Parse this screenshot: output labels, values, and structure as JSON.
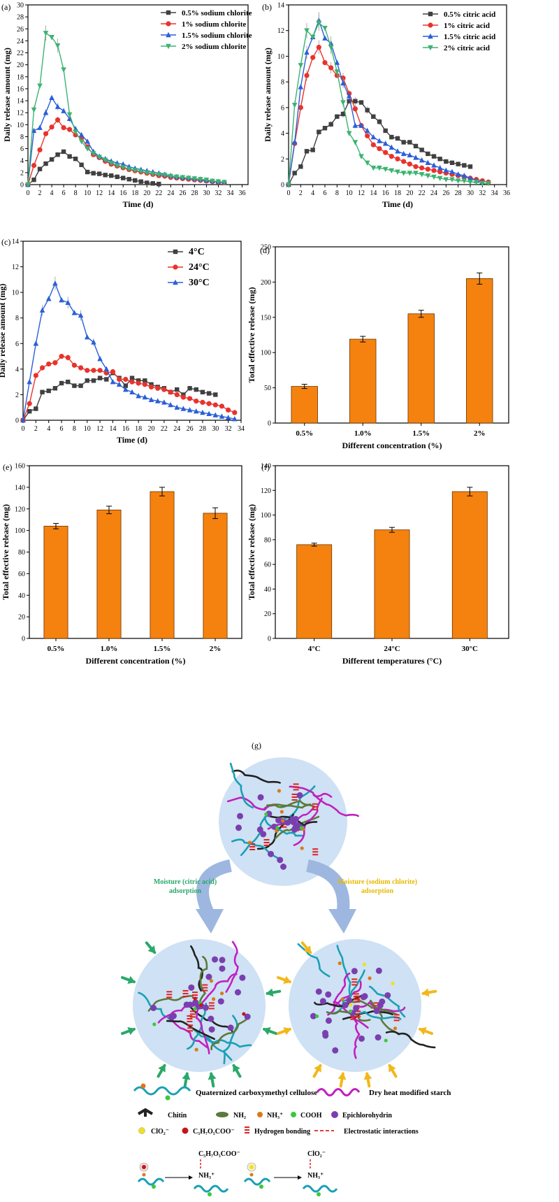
{
  "colors": {
    "black_series": "#404040",
    "red_series": "#e8332c",
    "blue_series": "#2a5fd8",
    "green_series": "#3cb371",
    "bar": "#f5820f",
    "bar_edge": "#6b3300",
    "arrow": "#9db7e0",
    "bubble": "#cfe1f4",
    "label_green": "#2aa86a",
    "label_yellow": "#e8b800"
  },
  "chart_data": [
    {
      "panel": "(a)",
      "type": "line",
      "xlabel": "Time (d)",
      "ylabel": "Daily release amount (mg)",
      "xlim": [
        0,
        37
      ],
      "ylim": [
        0,
        30
      ],
      "xticks": [
        0,
        2,
        4,
        6,
        8,
        10,
        12,
        14,
        16,
        18,
        20,
        22,
        24,
        26,
        28,
        30,
        32,
        34,
        36
      ],
      "yticks": [
        0,
        2,
        4,
        6,
        8,
        10,
        12,
        14,
        16,
        18,
        20,
        22,
        24,
        26,
        28,
        30
      ],
      "legend_position": "top-right",
      "series": [
        {
          "name": "0.5% sodium chlorite",
          "marker": "square",
          "color": "#404040",
          "x": [
            0,
            1,
            2,
            3,
            4,
            5,
            6,
            7,
            8,
            9,
            10,
            11,
            12,
            13,
            14,
            15,
            16,
            17,
            18,
            19,
            20,
            21,
            22
          ],
          "y": [
            0,
            0.8,
            2.6,
            3.5,
            4.2,
            5.0,
            5.5,
            4.7,
            4.3,
            3.3,
            2.1,
            1.9,
            1.8,
            1.6,
            1.5,
            1.3,
            1.1,
            0.9,
            0.7,
            0.5,
            0.3,
            0.2,
            0.1
          ]
        },
        {
          "name": "1% sodium chlorite",
          "marker": "circle",
          "color": "#e8332c",
          "x": [
            0,
            1,
            2,
            3,
            4,
            5,
            6,
            7,
            8,
            9,
            10,
            11,
            12,
            13,
            14,
            15,
            16,
            17,
            18,
            19,
            20,
            21,
            22,
            23,
            24,
            25,
            26,
            27,
            28,
            29,
            30,
            31,
            32,
            33
          ],
          "y": [
            0,
            3.2,
            5.8,
            8.5,
            9.6,
            10.8,
            9.5,
            9.2,
            8.3,
            7.8,
            6.3,
            5.0,
            4.5,
            3.9,
            3.4,
            3.1,
            2.8,
            2.5,
            2.3,
            2.1,
            1.9,
            1.7,
            1.5,
            1.4,
            1.2,
            1.1,
            1.0,
            0.9,
            0.8,
            0.7,
            0.6,
            0.5,
            0.4,
            0.3
          ]
        },
        {
          "name": "1.5% sodium chlorite",
          "marker": "triangle",
          "color": "#2a5fd8",
          "x": [
            0,
            1,
            2,
            3,
            4,
            5,
            6,
            7,
            8,
            9,
            10,
            11,
            12,
            13,
            14,
            15,
            16,
            17,
            18,
            19,
            20,
            21,
            22,
            23,
            24,
            25,
            26,
            27,
            28,
            29,
            30,
            31,
            32,
            33
          ],
          "y": [
            0,
            9.0,
            9.5,
            12.0,
            14.5,
            13.0,
            12.3,
            11.0,
            9.3,
            8.3,
            7.2,
            5.5,
            4.7,
            4.3,
            3.9,
            3.6,
            3.4,
            3.0,
            2.7,
            2.5,
            2.3,
            2.1,
            1.9,
            1.7,
            1.5,
            1.3,
            1.2,
            1.1,
            1.0,
            0.9,
            0.7,
            0.6,
            0.5,
            0.4
          ]
        },
        {
          "name": "2% sodium chlorite",
          "marker": "triangle-down",
          "color": "#3cb371",
          "x": [
            0,
            1,
            2,
            3,
            4,
            5,
            6,
            7,
            8,
            9,
            10,
            11,
            12,
            13,
            14,
            15,
            16,
            17,
            18,
            19,
            20,
            21,
            22,
            23,
            24,
            25,
            26,
            27,
            28,
            29,
            30,
            31,
            32,
            33
          ],
          "y": [
            0,
            12.5,
            16.5,
            25.3,
            24.6,
            23.2,
            19.2,
            11.7,
            8.8,
            7.2,
            6.0,
            5.2,
            4.6,
            4.1,
            3.6,
            3.2,
            2.9,
            2.6,
            2.4,
            2.2,
            2.0,
            1.8,
            1.7,
            1.6,
            1.4,
            1.3,
            1.2,
            1.1,
            1.0,
            0.9,
            0.8,
            0.6,
            0.5,
            0.4
          ]
        }
      ]
    },
    {
      "panel": "(b)",
      "type": "line",
      "xlabel": "Time (d)",
      "ylabel": "Daily release amount (mg)",
      "xlim": [
        0,
        36
      ],
      "ylim": [
        0,
        14
      ],
      "xticks": [
        0,
        2,
        4,
        6,
        8,
        10,
        12,
        14,
        16,
        18,
        20,
        22,
        24,
        26,
        28,
        30,
        32,
        34,
        36
      ],
      "yticks": [
        0,
        2,
        4,
        6,
        8,
        10,
        12,
        14
      ],
      "legend_position": "top-right",
      "series": [
        {
          "name": "0.5% citric acid",
          "marker": "square",
          "color": "#404040",
          "x": [
            0,
            1,
            2,
            3,
            4,
            5,
            6,
            7,
            8,
            9,
            10,
            11,
            12,
            13,
            14,
            15,
            16,
            17,
            18,
            19,
            20,
            21,
            22,
            23,
            24,
            25,
            26,
            27,
            28,
            29,
            30
          ],
          "y": [
            0,
            0.9,
            1.4,
            2.6,
            2.7,
            4.1,
            4.4,
            4.7,
            5.3,
            5.5,
            6.5,
            6.5,
            6.4,
            5.8,
            5.3,
            4.9,
            4.2,
            3.7,
            3.6,
            3.3,
            3.3,
            3.0,
            2.7,
            2.4,
            2.2,
            2.0,
            1.8,
            1.7,
            1.6,
            1.5,
            1.4
          ]
        },
        {
          "name": "1% citric acid",
          "marker": "circle",
          "color": "#e8332c",
          "x": [
            0,
            1,
            2,
            3,
            4,
            5,
            6,
            7,
            8,
            9,
            10,
            11,
            12,
            13,
            14,
            15,
            16,
            17,
            18,
            19,
            20,
            21,
            22,
            23,
            24,
            25,
            26,
            27,
            28,
            29,
            30,
            31,
            32,
            33
          ],
          "y": [
            0,
            3.2,
            6.0,
            8.5,
            9.9,
            10.7,
            9.5,
            9.1,
            8.5,
            8.3,
            7.1,
            5.9,
            4.6,
            3.8,
            3.1,
            2.8,
            2.5,
            2.2,
            2.0,
            1.8,
            1.6,
            1.4,
            1.3,
            1.2,
            1.1,
            1.0,
            0.9,
            0.8,
            0.7,
            0.6,
            0.5,
            0.4,
            0.3,
            0.2
          ]
        },
        {
          "name": "1.5% citric acid",
          "marker": "triangle",
          "color": "#2a5fd8",
          "x": [
            0,
            1,
            2,
            3,
            4,
            5,
            6,
            7,
            8,
            9,
            10,
            11,
            12,
            13,
            14,
            15,
            16,
            17,
            18,
            19,
            20,
            21,
            22,
            23,
            24,
            25,
            26,
            27,
            28,
            29,
            30,
            31,
            32
          ],
          "y": [
            0,
            3.3,
            7.6,
            10.3,
            11.5,
            12.8,
            11.4,
            11.0,
            9.5,
            7.9,
            6.9,
            4.6,
            4.6,
            4.2,
            3.7,
            3.4,
            3.2,
            2.9,
            2.6,
            2.4,
            2.3,
            2.1,
            1.9,
            1.7,
            1.5,
            1.3,
            1.1,
            1.0,
            0.8,
            0.7,
            0.5,
            0.3,
            0.2
          ]
        },
        {
          "name": "2% citric acid",
          "marker": "triangle-down",
          "color": "#3cb371",
          "x": [
            0,
            1,
            2,
            3,
            4,
            5,
            6,
            7,
            8,
            9,
            10,
            11,
            12,
            13,
            14,
            15,
            16,
            17,
            18,
            19,
            20,
            21,
            22,
            23,
            24,
            25,
            26,
            27,
            28,
            29,
            30,
            31,
            32,
            33
          ],
          "y": [
            0,
            6.2,
            9.3,
            12.0,
            11.5,
            12.6,
            12.2,
            10.7,
            8.8,
            6.4,
            4.0,
            3.3,
            2.2,
            1.7,
            1.3,
            1.3,
            1.2,
            1.1,
            1.0,
            0.9,
            0.9,
            0.9,
            0.8,
            0.7,
            0.6,
            0.5,
            0.4,
            0.4,
            0.3,
            0.3,
            0.2,
            0.2,
            0.1,
            0.1
          ]
        }
      ]
    },
    {
      "panel": "(c)",
      "type": "line",
      "xlabel": "Time (d)",
      "ylabel": "Daily release amount (mg)",
      "xlim": [
        0,
        34
      ],
      "ylim": [
        0,
        14
      ],
      "xticks": [
        0,
        2,
        4,
        6,
        8,
        10,
        12,
        14,
        16,
        18,
        20,
        22,
        24,
        26,
        28,
        30,
        32,
        34
      ],
      "yticks": [
        0,
        2,
        4,
        6,
        8,
        10,
        12,
        14
      ],
      "legend_position": "top-right",
      "series": [
        {
          "name": "4°C",
          "marker": "square",
          "color": "#404040",
          "x": [
            0,
            1,
            2,
            3,
            4,
            5,
            6,
            7,
            8,
            9,
            10,
            11,
            12,
            13,
            14,
            15,
            16,
            17,
            18,
            19,
            20,
            21,
            22,
            23,
            24,
            25,
            26,
            27,
            28,
            29,
            30
          ],
          "y": [
            0,
            0.7,
            0.9,
            2.2,
            2.3,
            2.5,
            2.9,
            3.0,
            2.7,
            2.7,
            3.1,
            3.1,
            3.3,
            3.2,
            3.7,
            3.3,
            2.7,
            3.3,
            3.1,
            3.1,
            2.8,
            2.6,
            2.5,
            2.2,
            2.4,
            2.0,
            2.5,
            2.4,
            2.2,
            2.1,
            2.0
          ]
        },
        {
          "name": "24°C",
          "marker": "circle",
          "color": "#e8332c",
          "x": [
            0,
            1,
            2,
            3,
            4,
            5,
            6,
            7,
            8,
            9,
            10,
            11,
            12,
            13,
            14,
            15,
            16,
            17,
            18,
            19,
            20,
            21,
            22,
            23,
            24,
            25,
            26,
            27,
            28,
            29,
            30,
            31,
            32,
            33
          ],
          "y": [
            0,
            1.3,
            3.5,
            4.1,
            4.4,
            4.5,
            5.0,
            4.9,
            4.3,
            4.1,
            3.9,
            3.9,
            3.9,
            3.7,
            3.8,
            3.2,
            3.2,
            3.0,
            2.9,
            2.8,
            2.6,
            2.5,
            2.4,
            2.2,
            2.0,
            1.8,
            1.7,
            1.5,
            1.4,
            1.3,
            1.2,
            1.1,
            0.8,
            0.6
          ]
        },
        {
          "name": "30°C",
          "marker": "triangle",
          "color": "#2a5fd8",
          "x": [
            0,
            1,
            2,
            3,
            4,
            5,
            6,
            7,
            8,
            9,
            10,
            11,
            12,
            13,
            14,
            15,
            16,
            17,
            18,
            19,
            20,
            21,
            22,
            23,
            24,
            25,
            26,
            27,
            28,
            29,
            30,
            31,
            32,
            33
          ],
          "y": [
            0,
            3.0,
            6.0,
            8.6,
            9.5,
            10.7,
            9.4,
            9.2,
            8.4,
            8.2,
            6.5,
            6.1,
            4.8,
            4.0,
            3.0,
            2.8,
            2.4,
            2.2,
            1.9,
            1.8,
            1.6,
            1.5,
            1.4,
            1.2,
            1.0,
            0.9,
            0.8,
            0.7,
            0.6,
            0.5,
            0.4,
            0.3,
            0.2,
            0.1
          ]
        }
      ]
    },
    {
      "panel": "(d)",
      "type": "bar",
      "xlabel": "Different concentration (%)",
      "ylabel": "Total effective release (mg)",
      "ylim": [
        0,
        250
      ],
      "yticks": [
        0,
        50,
        100,
        150,
        200,
        250
      ],
      "categories": [
        "0.5%",
        "1.0%",
        "1.5%",
        "2%"
      ],
      "values": [
        52,
        119,
        155,
        205
      ],
      "errors": [
        3,
        4,
        5,
        8
      ]
    },
    {
      "panel": "(e)",
      "type": "bar",
      "xlabel": "Different concentration (%)",
      "ylabel": "Total effective release (mg)",
      "ylim": [
        0,
        160
      ],
      "yticks": [
        0,
        20,
        40,
        60,
        80,
        100,
        120,
        140,
        160
      ],
      "categories": [
        "0.5%",
        "1.0%",
        "1.5%",
        "2%"
      ],
      "values": [
        104,
        119,
        136,
        116
      ],
      "errors": [
        2.5,
        3.5,
        4,
        5
      ]
    },
    {
      "panel": "(f)",
      "type": "bar",
      "xlabel": "Different temperatures (°C)",
      "ylabel": "Total effective release (mg)",
      "ylim": [
        0,
        140
      ],
      "yticks": [
        0,
        20,
        40,
        60,
        80,
        100,
        120,
        140
      ],
      "categories": [
        "4°C",
        "24°C",
        "30°C"
      ],
      "values": [
        76,
        88,
        119
      ],
      "errors": [
        1.2,
        2,
        3.5
      ]
    }
  ],
  "diagram": {
    "panel_label": "(g)",
    "left_arrow_label_line1": "Moisture (citric acid)",
    "left_arrow_label_line2": "adsorption",
    "right_arrow_label_line1": "Moisture (sodium chlorite)",
    "right_arrow_label_line2": "adsorption",
    "legend": {
      "qcmc": "Quaternized carboxymethyl cellulose",
      "starch": "Dry heat modified starch",
      "chitin": "Chitin",
      "nh2": "NH₂",
      "nh3": "NH₃⁺",
      "cooh": "COOH",
      "epi": "Epichlorohydrin",
      "clo2": "ClO₂⁻",
      "citrate": "C₅H₇O₅COO⁻",
      "hbond": "Hydrogen bonding",
      "electro": "Electrostatic interactions"
    },
    "reaction_1_product": "C₅H₇O₅COO⁻",
    "reaction_1_cation": "NH₃⁺",
    "reaction_2_product": "ClO₂⁻",
    "reaction_2_cation": "NH₃⁺"
  }
}
